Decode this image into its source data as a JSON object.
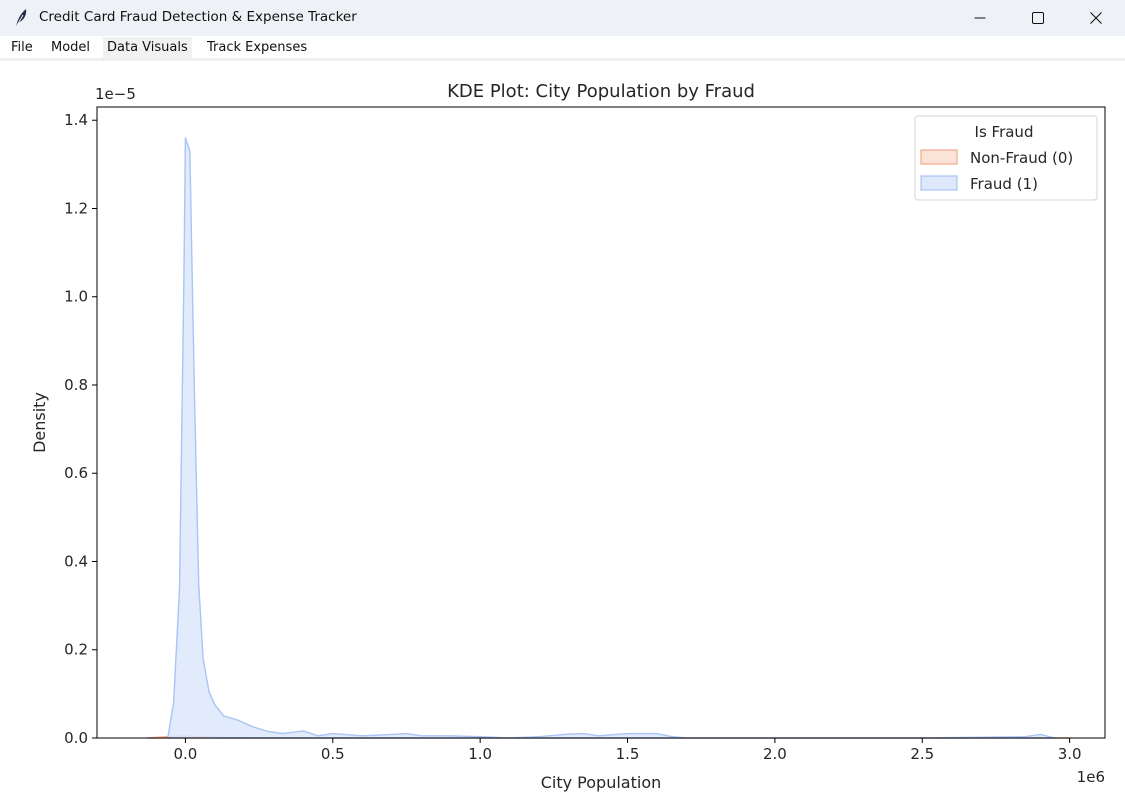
{
  "window": {
    "title": "Credit Card Fraud Detection & Expense Tracker",
    "app_icon": "feather-icon",
    "controls": [
      "minimize-icon",
      "maximize-icon",
      "close-icon"
    ]
  },
  "menu": {
    "items": [
      {
        "label": "File"
      },
      {
        "label": "Model"
      },
      {
        "label": "Data Visuals"
      },
      {
        "label": "Track Expenses"
      }
    ],
    "active": "Data Visuals"
  },
  "chart_data": {
    "type": "area",
    "title": "KDE Plot: City Population by Fraud",
    "xlabel": "City Population",
    "ylabel": "Density",
    "x_offset_label": "1e6",
    "y_offset_label": "1e−5",
    "xlim": [
      -300000,
      3120000
    ],
    "ylim": [
      0,
      1.43e-05
    ],
    "x_ticks": [
      0,
      500000,
      1000000,
      1500000,
      2000000,
      2500000,
      3000000
    ],
    "x_tick_labels": [
      "0.0",
      "0.5",
      "1.0",
      "1.5",
      "2.0",
      "2.5",
      "3.0"
    ],
    "y_ticks": [
      0,
      2e-06,
      4e-06,
      6e-06,
      8e-06,
      1e-05,
      1.2e-05,
      1.4e-05
    ],
    "y_tick_labels": [
      "0.0",
      "0.2",
      "0.4",
      "0.6",
      "0.8",
      "1.0",
      "1.2",
      "1.4"
    ],
    "grid": false,
    "legend": {
      "title": "Is Fraud",
      "placement": "upper right",
      "entries": [
        {
          "label": "Non-Fraud (0)",
          "fill": "#fbe3d8",
          "stroke": "#f2a98a"
        },
        {
          "label": "Fraud (1)",
          "fill": "#dde8fb",
          "stroke": "#a9c4f5"
        }
      ]
    },
    "series": [
      {
        "name": "Non-Fraud (0)",
        "fill": "#fbe3d8",
        "stroke": "#f2a98a",
        "x": [
          -130000,
          -60000,
          0,
          60000,
          130000,
          300000,
          1000000,
          2000000,
          3000000
        ],
        "y": [
          0,
          3e-08,
          5e-08,
          3e-08,
          1e-08,
          0,
          0,
          0,
          0
        ]
      },
      {
        "name": "Fraud (1)",
        "fill": "#dde8fb",
        "stroke": "#a9c4f5",
        "x": [
          -60000,
          -40000,
          -20000,
          -5000,
          0,
          15000,
          30000,
          45000,
          60000,
          80000,
          100000,
          130000,
          180000,
          230000,
          280000,
          330000,
          400000,
          450000,
          500000,
          600000,
          700000,
          750000,
          800000,
          900000,
          1000000,
          1100000,
          1200000,
          1300000,
          1350000,
          1400000,
          1500000,
          1600000,
          1650000,
          1700000,
          2000000,
          2500000,
          2850000,
          2900000,
          2950000
        ],
        "y": [
          0,
          8e-07,
          3.4e-06,
          1.05e-05,
          1.36e-05,
          1.33e-05,
          8e-06,
          3.5e-06,
          1.8e-06,
          1.05e-06,
          7.5e-07,
          5e-07,
          4e-07,
          2.5e-07,
          1.5e-07,
          1e-07,
          1.6e-07,
          5e-08,
          1e-07,
          5e-08,
          8e-08,
          1e-07,
          5e-08,
          5e-08,
          3e-08,
          0,
          3e-08,
          9e-08,
          1e-07,
          5e-08,
          1e-07,
          1e-07,
          3e-08,
          0,
          0,
          0,
          3e-08,
          8e-08,
          0
        ]
      }
    ]
  }
}
